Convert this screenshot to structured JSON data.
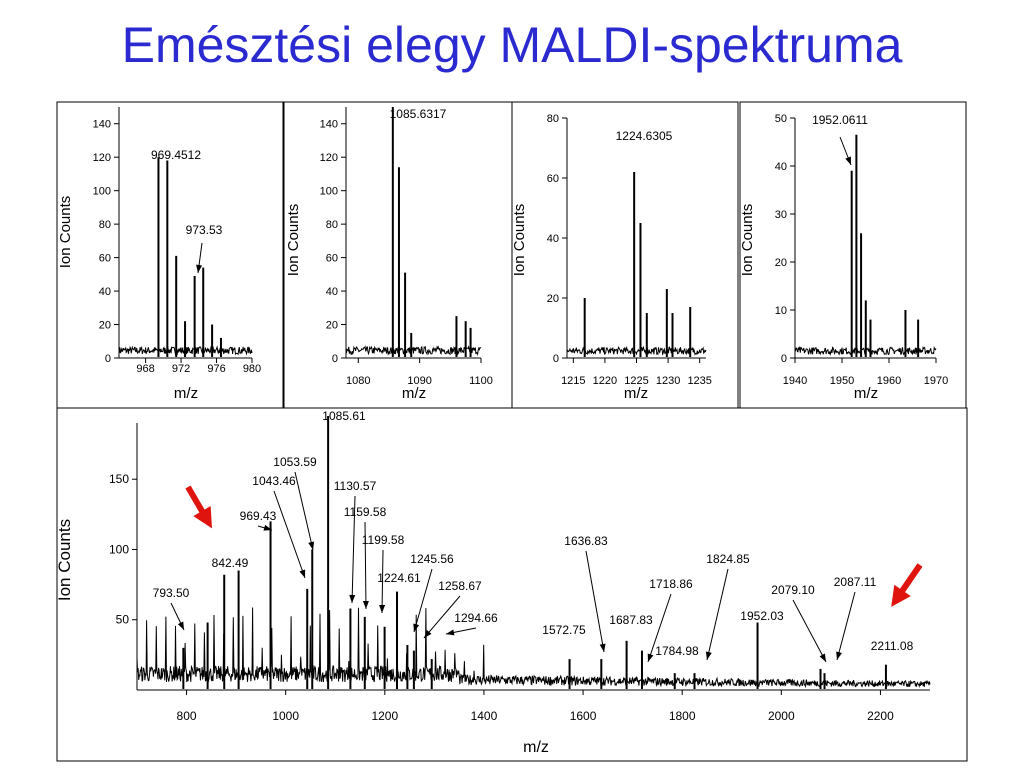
{
  "title": "Emésztési elegy MALDI-spektruma",
  "colors": {
    "title": "#2a2ad0",
    "arrow": "#e0140f",
    "trace": "#000000"
  },
  "chart_data": [
    {
      "type": "line",
      "title": "",
      "xlabel": "m/z",
      "ylabel": "Ion Counts",
      "xlim": [
        965,
        980
      ],
      "ylim": [
        0,
        150
      ],
      "xticks": [
        968,
        972,
        976,
        980
      ],
      "yticks": [
        0,
        20,
        40,
        60,
        80,
        100,
        120,
        140
      ],
      "peaks": [
        {
          "x": 969.45,
          "y": 120
        },
        {
          "x": 970.45,
          "y": 118
        },
        {
          "x": 971.45,
          "y": 61
        },
        {
          "x": 972.45,
          "y": 22
        },
        {
          "x": 973.53,
          "y": 49
        },
        {
          "x": 974.5,
          "y": 54
        },
        {
          "x": 975.5,
          "y": 20
        },
        {
          "x": 976.5,
          "y": 12
        }
      ],
      "annotations": [
        {
          "text": "969.4512",
          "x": 969.45,
          "y": 120,
          "arrow": false
        },
        {
          "text": "973.53",
          "x": 973.53,
          "y": 49,
          "arrow": true
        }
      ]
    },
    {
      "type": "line",
      "title": "",
      "xlabel": "m/z",
      "ylabel": "Ion Counts",
      "xlim": [
        1078,
        1100
      ],
      "ylim": [
        0,
        150
      ],
      "xticks": [
        1080,
        1090,
        1100
      ],
      "yticks": [
        0,
        20,
        40,
        60,
        80,
        100,
        120,
        140
      ],
      "peaks": [
        {
          "x": 1085.63,
          "y": 150
        },
        {
          "x": 1086.63,
          "y": 114
        },
        {
          "x": 1087.63,
          "y": 51
        },
        {
          "x": 1088.63,
          "y": 15
        },
        {
          "x": 1096,
          "y": 25
        },
        {
          "x": 1097.5,
          "y": 22
        },
        {
          "x": 1098.3,
          "y": 18
        }
      ],
      "annotations": [
        {
          "text": "1085.6317",
          "x": 1085.63,
          "y": 150,
          "arrow": false
        }
      ]
    },
    {
      "type": "line",
      "title": "",
      "xlabel": "m/z",
      "ylabel": "Ion Counts",
      "xlim": [
        1214,
        1236
      ],
      "ylim": [
        0,
        80
      ],
      "xticks": [
        1215,
        1220,
        1225,
        1230,
        1235
      ],
      "yticks": [
        0,
        20,
        40,
        60,
        80
      ],
      "peaks": [
        {
          "x": 1224.63,
          "y": 62
        },
        {
          "x": 1225.63,
          "y": 45
        },
        {
          "x": 1226.63,
          "y": 15
        },
        {
          "x": 1216.8,
          "y": 20
        },
        {
          "x": 1229.8,
          "y": 23
        },
        {
          "x": 1230.7,
          "y": 15
        },
        {
          "x": 1233.5,
          "y": 17
        }
      ],
      "annotations": [
        {
          "text": "1224.6305",
          "x": 1224.63,
          "y": 62,
          "arrow": false
        }
      ]
    },
    {
      "type": "line",
      "title": "",
      "xlabel": "m/z",
      "ylabel": "Ion Counts",
      "xlim": [
        1940,
        1970
      ],
      "ylim": [
        0,
        50
      ],
      "xticks": [
        1940,
        1950,
        1960,
        1970
      ],
      "yticks": [
        0,
        10,
        20,
        30,
        40,
        50
      ],
      "peaks": [
        {
          "x": 1952.06,
          "y": 39
        },
        {
          "x": 1953.06,
          "y": 46.5
        },
        {
          "x": 1954.06,
          "y": 26
        },
        {
          "x": 1955.06,
          "y": 12
        },
        {
          "x": 1956.06,
          "y": 8
        },
        {
          "x": 1963.5,
          "y": 10
        },
        {
          "x": 1966.2,
          "y": 8
        }
      ],
      "annotations": [
        {
          "text": "1952.0611",
          "x": 1952.06,
          "y": 39,
          "arrow": true
        }
      ]
    },
    {
      "type": "line",
      "title": "",
      "xlabel": "m/z",
      "ylabel": "Ion Counts",
      "xlim": [
        700,
        2300
      ],
      "ylim": [
        0,
        190
      ],
      "xticks": [
        800,
        1000,
        1200,
        1400,
        1600,
        1800,
        2000,
        2200
      ],
      "yticks": [
        50,
        100,
        150
      ],
      "peaks": [
        {
          "x": 793.5,
          "y": 30
        },
        {
          "x": 842.49,
          "y": 48
        },
        {
          "x": 876,
          "y": 82
        },
        {
          "x": 905,
          "y": 85
        },
        {
          "x": 969.43,
          "y": 120
        },
        {
          "x": 1043.46,
          "y": 72
        },
        {
          "x": 1053.59,
          "y": 100
        },
        {
          "x": 1085.61,
          "y": 195
        },
        {
          "x": 1130.57,
          "y": 58
        },
        {
          "x": 1159.58,
          "y": 52
        },
        {
          "x": 1199.58,
          "y": 45
        },
        {
          "x": 1224.61,
          "y": 70
        },
        {
          "x": 1245.56,
          "y": 32
        },
        {
          "x": 1258.67,
          "y": 28
        },
        {
          "x": 1294.66,
          "y": 22
        },
        {
          "x": 1572.75,
          "y": 22
        },
        {
          "x": 1636.83,
          "y": 22
        },
        {
          "x": 1687.83,
          "y": 35
        },
        {
          "x": 1718.86,
          "y": 28
        },
        {
          "x": 1784.98,
          "y": 12
        },
        {
          "x": 1824.85,
          "y": 12
        },
        {
          "x": 1952.03,
          "y": 48
        },
        {
          "x": 2079.1,
          "y": 15
        },
        {
          "x": 2087.11,
          "y": 12
        },
        {
          "x": 2211.08,
          "y": 18
        }
      ],
      "annotations": [
        {
          "text": "793.50",
          "x": 793.5
        },
        {
          "text": "842.49",
          "x": 842.49
        },
        {
          "text": "969.43",
          "x": 969.43
        },
        {
          "text": "1043.46",
          "x": 1043.46
        },
        {
          "text": "1053.59",
          "x": 1053.59
        },
        {
          "text": "1085.61",
          "x": 1085.61
        },
        {
          "text": "1130.57",
          "x": 1130.57
        },
        {
          "text": "1159.58",
          "x": 1159.58
        },
        {
          "text": "1199.58",
          "x": 1199.58
        },
        {
          "text": "1224.61",
          "x": 1224.61
        },
        {
          "text": "1245.56",
          "x": 1245.56
        },
        {
          "text": "1258.67",
          "x": 1258.67
        },
        {
          "text": "1294.66",
          "x": 1294.66
        },
        {
          "text": "1572.75",
          "x": 1572.75
        },
        {
          "text": "1636.83",
          "x": 1636.83
        },
        {
          "text": "1687.83",
          "x": 1687.83
        },
        {
          "text": "1718.86",
          "x": 1718.86
        },
        {
          "text": "1784.98",
          "x": 1784.98
        },
        {
          "text": "1824.85",
          "x": 1824.85
        },
        {
          "text": "1952.03",
          "x": 1952.03
        },
        {
          "text": "2079.10",
          "x": 2079.1
        },
        {
          "text": "2087.11",
          "x": 2087.11
        },
        {
          "text": "2211.08",
          "x": 2211.08
        }
      ],
      "highlight_arrows_near": [
        842.49,
        2211.08
      ]
    }
  ]
}
